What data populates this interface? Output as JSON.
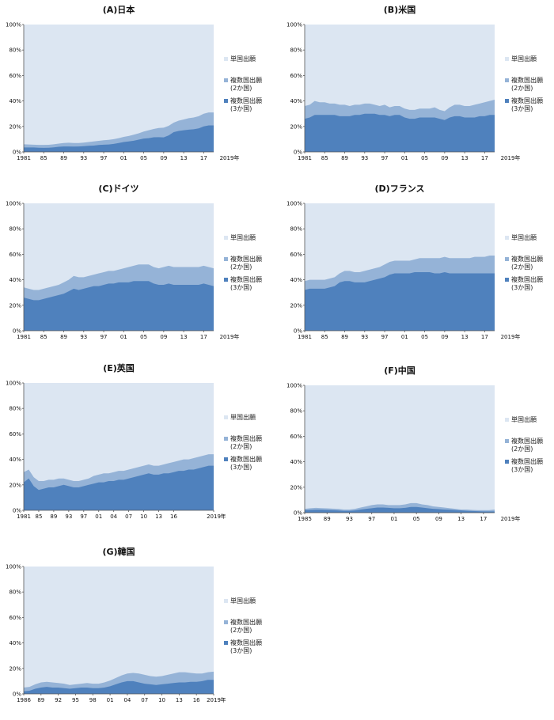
{
  "colors": {
    "single": "#dce6f2",
    "two": "#95b3d7",
    "three": "#4f81bd"
  },
  "chart_data": [
    {
      "type": "area",
      "title": "(A)日本",
      "ylim": [
        0,
        100
      ],
      "stacked": true,
      "yticks": [
        "0%",
        "20%",
        "40%",
        "60%",
        "80%",
        "100%"
      ],
      "x": [
        1981,
        1982,
        1983,
        1984,
        1985,
        1986,
        1987,
        1988,
        1989,
        1990,
        1991,
        1992,
        1993,
        1994,
        1995,
        1996,
        1997,
        1998,
        1999,
        2000,
        2001,
        2002,
        2003,
        2004,
        2005,
        2006,
        2007,
        2008,
        2009,
        2010,
        2011,
        2012,
        2013,
        2014,
        2015,
        2016,
        2017,
        2018,
        2019
      ],
      "xticks": [
        "1981",
        "85",
        "89",
        "93",
        "97",
        "01",
        "05",
        "09",
        "13",
        "17"
      ],
      "xunit": "2019年",
      "series": [
        {
          "name": "複数国出願\n(3か国)",
          "values": [
            3.5,
            3.5,
            3.5,
            3.3,
            3.2,
            3.3,
            3.6,
            4.0,
            4.3,
            4.3,
            4.2,
            4.3,
            4.5,
            4.8,
            5.0,
            5.4,
            5.7,
            5.8,
            6.3,
            7.0,
            7.8,
            8.2,
            8.8,
            9.6,
            10.5,
            10.8,
            11.5,
            11.6,
            11.4,
            13.0,
            15.5,
            16.5,
            17.0,
            17.5,
            17.8,
            18.5,
            20.0,
            20.8,
            20.8
          ]
        },
        {
          "name": "複数国出願\n(2か国)",
          "values": [
            6.0,
            5.8,
            5.7,
            5.5,
            5.5,
            5.6,
            6.0,
            6.5,
            7.0,
            7.2,
            7.0,
            7.0,
            7.3,
            7.8,
            8.2,
            8.7,
            9.2,
            9.5,
            10.0,
            10.8,
            11.8,
            12.5,
            13.5,
            14.6,
            16.0,
            17.0,
            18.0,
            18.8,
            19.0,
            20.5,
            23.0,
            24.5,
            25.5,
            26.5,
            27.0,
            28.0,
            30.0,
            31.0,
            31.0
          ]
        }
      ],
      "legend": [
        "単国出願",
        "複数国出願\n(2か国)",
        "複数国出願\n(3か国)"
      ]
    },
    {
      "type": "area",
      "title": "(B)米国",
      "ylim": [
        0,
        100
      ],
      "stacked": true,
      "yticks": [
        "0%",
        "20%",
        "40%",
        "60%",
        "80%",
        "100%"
      ],
      "x": [
        1981,
        1982,
        1983,
        1984,
        1985,
        1986,
        1987,
        1988,
        1989,
        1990,
        1991,
        1992,
        1993,
        1994,
        1995,
        1996,
        1997,
        1998,
        1999,
        2000,
        2001,
        2002,
        2003,
        2004,
        2005,
        2006,
        2007,
        2008,
        2009,
        2010,
        2011,
        2012,
        2013,
        2014,
        2015,
        2016,
        2017,
        2018,
        2019
      ],
      "xticks": [
        "1981",
        "85",
        "89",
        "93",
        "97",
        "01",
        "05",
        "09",
        "13",
        "17"
      ],
      "xunit": "2019年",
      "series": [
        {
          "name": "複数国出願\n(3か国)",
          "values": [
            26,
            27,
            29,
            29,
            29,
            29,
            29,
            28,
            28,
            28,
            29,
            29,
            30,
            30,
            30,
            29,
            29,
            28,
            29,
            29,
            27,
            26,
            26,
            27,
            27,
            27,
            27,
            26,
            25,
            27,
            28,
            28,
            27,
            27,
            27,
            28,
            28,
            29,
            29
          ]
        },
        {
          "name": "複数国出願\n(2か国)",
          "values": [
            36,
            37,
            40,
            39,
            39,
            38,
            38,
            37,
            37,
            36,
            37,
            37,
            38,
            38,
            37,
            36,
            37,
            35,
            36,
            36,
            34,
            33,
            33,
            34,
            34,
            34,
            35,
            33,
            32,
            35,
            37,
            37,
            36,
            36,
            37,
            38,
            39,
            40,
            41
          ]
        }
      ],
      "legend": [
        "単国出願",
        "複数国出願\n(2か国)",
        "複数国出願\n(3か国)"
      ]
    },
    {
      "type": "area",
      "title": "(C)ドイツ",
      "ylim": [
        0,
        100
      ],
      "stacked": true,
      "yticks": [
        "0%",
        "20%",
        "40%",
        "60%",
        "80%",
        "100%"
      ],
      "x": [
        1981,
        1982,
        1983,
        1984,
        1985,
        1986,
        1987,
        1988,
        1989,
        1990,
        1991,
        1992,
        1993,
        1994,
        1995,
        1996,
        1997,
        1998,
        1999,
        2000,
        2001,
        2002,
        2003,
        2004,
        2005,
        2006,
        2007,
        2008,
        2009,
        2010,
        2011,
        2012,
        2013,
        2014,
        2015,
        2016,
        2017,
        2018,
        2019
      ],
      "xticks": [
        "1981",
        "85",
        "89",
        "93",
        "97",
        "01",
        "05",
        "09",
        "13",
        "17"
      ],
      "xunit": "2019年",
      "series": [
        {
          "name": "複数国出願\n(3か国)",
          "values": [
            26,
            25,
            24,
            24,
            25,
            26,
            27,
            28,
            29,
            31,
            33,
            32,
            33,
            34,
            35,
            35,
            36,
            37,
            37,
            38,
            38,
            38,
            39,
            39,
            39,
            39,
            37,
            36,
            36,
            37,
            36,
            36,
            36,
            36,
            36,
            36,
            37,
            36,
            35
          ]
        },
        {
          "name": "複数国出願\n(2か国)",
          "values": [
            34,
            33,
            32,
            32,
            33,
            34,
            35,
            36,
            38,
            40,
            43,
            42,
            42,
            43,
            44,
            45,
            46,
            47,
            47,
            48,
            49,
            50,
            51,
            52,
            52,
            52,
            50,
            49,
            50,
            51,
            50,
            50,
            50,
            50,
            50,
            50,
            51,
            50,
            49
          ]
        }
      ],
      "legend": [
        "単国出願",
        "複数国出願\n(2か国)",
        "複数国出願\n(3か国)"
      ]
    },
    {
      "type": "area",
      "title": "(D)フランス",
      "ylim": [
        0,
        100
      ],
      "stacked": true,
      "yticks": [
        "0%",
        "20%",
        "40%",
        "60%",
        "80%",
        "100%"
      ],
      "x": [
        1981,
        1982,
        1983,
        1984,
        1985,
        1986,
        1987,
        1988,
        1989,
        1990,
        1991,
        1992,
        1993,
        1994,
        1995,
        1996,
        1997,
        1998,
        1999,
        2000,
        2001,
        2002,
        2003,
        2004,
        2005,
        2006,
        2007,
        2008,
        2009,
        2010,
        2011,
        2012,
        2013,
        2014,
        2015,
        2016,
        2017,
        2018,
        2019
      ],
      "xticks": [
        "1981",
        "85",
        "89",
        "93",
        "97",
        "01",
        "05",
        "09",
        "13",
        "17"
      ],
      "xunit": "2019年",
      "series": [
        {
          "name": "複数国出願\n(3か国)",
          "values": [
            32,
            33,
            33,
            33,
            33,
            34,
            35,
            38,
            39,
            39,
            38,
            38,
            38,
            39,
            40,
            41,
            42,
            44,
            45,
            45,
            45,
            45,
            46,
            46,
            46,
            46,
            45,
            45,
            46,
            45,
            45,
            45,
            45,
            45,
            45,
            45,
            45,
            45,
            45
          ]
        },
        {
          "name": "複数国出願\n(2か国)",
          "values": [
            39,
            40,
            40,
            40,
            40,
            41,
            42,
            45,
            47,
            47,
            46,
            46,
            47,
            48,
            49,
            50,
            52,
            54,
            55,
            55,
            55,
            55,
            56,
            57,
            57,
            57,
            57,
            57,
            58,
            57,
            57,
            57,
            57,
            57,
            58,
            58,
            58,
            59,
            59
          ]
        }
      ],
      "legend": [
        "単国出願",
        "複数国出願\n(2か国)",
        "複数国出願\n(3か国)"
      ]
    },
    {
      "type": "area",
      "title": "(E)英国",
      "ylim": [
        0,
        100
      ],
      "stacked": true,
      "yticks": [
        "0%",
        "20%",
        "40%",
        "60%",
        "80%",
        "100%"
      ],
      "x": [
        1981,
        1982,
        1983,
        1984,
        1985,
        1986,
        1987,
        1988,
        1989,
        1990,
        1991,
        1992,
        1993,
        1994,
        1995,
        1996,
        1997,
        1998,
        1999,
        2000,
        2001,
        2002,
        2003,
        2004,
        2005,
        2006,
        2007,
        2008,
        2009,
        2010,
        2011,
        2012,
        2013,
        2014,
        2015,
        2016,
        2017,
        2018,
        2019
      ],
      "xticks": [
        "1981",
        "85",
        "89",
        "93",
        "97",
        "01",
        "04",
        "07",
        "10",
        "13",
        "16",
        "2019"
      ],
      "xunit": "年",
      "series": [
        {
          "name": "複数国出願\n(3か国)",
          "values": [
            22,
            25,
            19,
            16,
            17,
            18,
            18,
            19,
            20,
            19,
            18,
            18,
            19,
            20,
            21,
            22,
            22,
            23,
            23,
            24,
            24,
            25,
            26,
            27,
            28,
            29,
            28,
            28,
            29,
            29,
            30,
            31,
            31,
            32,
            32,
            33,
            34,
            35,
            35
          ]
        },
        {
          "name": "複数国出願\n(2か国)",
          "values": [
            30,
            32,
            26,
            23,
            23,
            24,
            24,
            25,
            25,
            24,
            23,
            23,
            24,
            25,
            27,
            28,
            29,
            29,
            30,
            31,
            31,
            32,
            33,
            34,
            35,
            36,
            35,
            35,
            36,
            37,
            38,
            39,
            40,
            40,
            41,
            42,
            43,
            44,
            44
          ]
        }
      ],
      "legend": [
        "単国出願",
        "複数国出願\n(2か国)",
        "複数国出願\n(3か国)"
      ]
    },
    {
      "type": "area",
      "title": "(F)中国",
      "ylim": [
        0,
        100
      ],
      "stacked": true,
      "yticks": [
        "0%",
        "20%",
        "40%",
        "60%",
        "80%",
        "100%"
      ],
      "x": [
        1985,
        1986,
        1987,
        1988,
        1989,
        1990,
        1991,
        1992,
        1993,
        1994,
        1995,
        1996,
        1997,
        1998,
        1999,
        2000,
        2001,
        2002,
        2003,
        2004,
        2005,
        2006,
        2007,
        2008,
        2009,
        2010,
        2011,
        2012,
        2013,
        2014,
        2015,
        2016,
        2017,
        2018,
        2019
      ],
      "xticks": [
        "1985",
        "89",
        "93",
        "97",
        "01",
        "05",
        "09",
        "13",
        "17"
      ],
      "xunit": "2019年",
      "series": [
        {
          "name": "複数国出願\n(3か国)",
          "values": [
            2.0,
            2.2,
            2.3,
            2.3,
            2.2,
            2.0,
            1.8,
            1.5,
            1.5,
            1.8,
            2.5,
            3.0,
            3.5,
            4.0,
            4.0,
            3.8,
            3.5,
            3.5,
            3.8,
            4.5,
            4.5,
            4.0,
            3.5,
            3.0,
            2.8,
            2.5,
            2.3,
            2.0,
            1.8,
            1.5,
            1.3,
            1.2,
            1.0,
            1.0,
            1.0
          ]
        },
        {
          "name": "複数国出願\n(2か国)",
          "values": [
            3.0,
            3.5,
            3.8,
            3.6,
            3.4,
            3.2,
            3.0,
            2.5,
            2.5,
            3.0,
            4.0,
            5.0,
            6.0,
            6.5,
            6.5,
            6.0,
            6.0,
            6.0,
            6.5,
            7.5,
            7.5,
            6.5,
            6.0,
            5.0,
            4.5,
            4.0,
            3.5,
            3.0,
            2.5,
            2.5,
            2.2,
            2.0,
            2.0,
            2.0,
            2.5
          ]
        }
      ],
      "legend": [
        "単国出願",
        "複数国出願\n(2か国)",
        "複数国出願\n(3か国)"
      ]
    },
    {
      "type": "area",
      "title": "(G)韓国",
      "ylim": [
        0,
        100
      ],
      "stacked": true,
      "yticks": [
        "0%",
        "20%",
        "40%",
        "60%",
        "80%",
        "100%"
      ],
      "x": [
        1986,
        1987,
        1988,
        1989,
        1990,
        1991,
        1992,
        1993,
        1994,
        1995,
        1996,
        1997,
        1998,
        1999,
        2000,
        2001,
        2002,
        2003,
        2004,
        2005,
        2006,
        2007,
        2008,
        2009,
        2010,
        2011,
        2012,
        2013,
        2014,
        2015,
        2016,
        2017,
        2018,
        2019
      ],
      "xticks": [
        "1986",
        "89",
        "92",
        "95",
        "98",
        "01",
        "04",
        "07",
        "10",
        "13",
        "16",
        "2019"
      ],
      "xunit": "年",
      "series": [
        {
          "name": "複数国出願\n(3か国)",
          "values": [
            2.0,
            2.5,
            4.0,
            5.0,
            5.5,
            5.0,
            5.0,
            4.5,
            4.0,
            4.5,
            5.0,
            5.0,
            4.5,
            4.5,
            5.0,
            6.0,
            7.5,
            9.0,
            10.0,
            10.0,
            9.0,
            8.0,
            7.5,
            7.0,
            7.5,
            8.0,
            8.5,
            9.0,
            9.0,
            9.5,
            9.5,
            10.0,
            11.0,
            11.0
          ]
        },
        {
          "name": "複数国出願\n(2か国)",
          "values": [
            5.0,
            5.5,
            7.5,
            9.0,
            9.5,
            9.0,
            8.5,
            8.0,
            7.0,
            7.5,
            8.0,
            8.5,
            8.0,
            8.0,
            9.0,
            10.5,
            12.5,
            14.5,
            16.0,
            16.5,
            16.0,
            15.0,
            14.0,
            13.5,
            14.0,
            15.0,
            16.0,
            17.0,
            17.0,
            16.5,
            16.0,
            16.0,
            17.0,
            17.5
          ]
        }
      ],
      "legend": [
        "単国出願",
        "複数国出願\n(2か国)",
        "複数国出願\n(3か国)"
      ]
    }
  ]
}
